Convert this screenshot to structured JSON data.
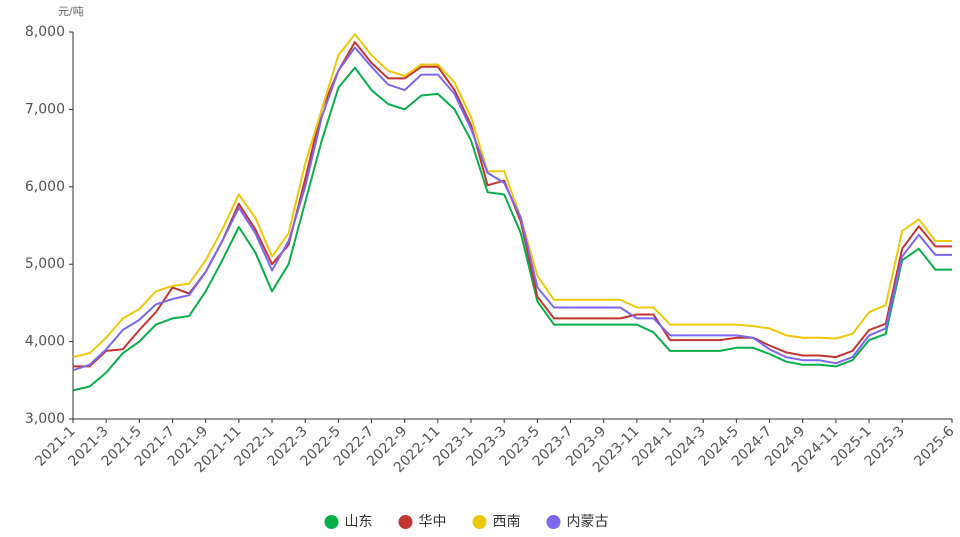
{
  "chart_data": {
    "type": "line",
    "y_unit": "元/吨",
    "categories": [
      "2021-1",
      null,
      "2021-3",
      null,
      "2021-5",
      null,
      "2021-7",
      null,
      "2021-9",
      null,
      "2021-11",
      null,
      "2022-1",
      null,
      "2022-3",
      null,
      "2022-5",
      null,
      "2022-7",
      null,
      "2022-9",
      null,
      "2022-11",
      null,
      "2023-1",
      null,
      "2023-3",
      null,
      "2023-5",
      null,
      "2023-7",
      null,
      "2023-9",
      null,
      "2023-11",
      null,
      "2024-1",
      null,
      "2024-3",
      null,
      "2024-5",
      null,
      "2024-7",
      null,
      "2024-9",
      null,
      "2024-11",
      null,
      "2025-1",
      null,
      "2025-3",
      null,
      null,
      "2025-6"
    ],
    "series": [
      {
        "name": "山东",
        "color": "#0aae4c",
        "values": [
          3370,
          3420,
          3600,
          3850,
          4000,
          4220,
          4300,
          4330,
          4650,
          5050,
          5480,
          5150,
          4650,
          5000,
          5800,
          6600,
          7280,
          7540,
          7250,
          7070,
          7000,
          7180,
          7200,
          7000,
          6600,
          5930,
          5900,
          5400,
          4520,
          4220,
          4220,
          4220,
          4220,
          4220,
          4220,
          4120,
          3880,
          3880,
          3880,
          3880,
          3920,
          3920,
          3840,
          3740,
          3700,
          3700,
          3680,
          3760,
          4020,
          4100,
          5050,
          5200,
          4930,
          4930
        ]
      },
      {
        "name": "华中",
        "color": "#c23531",
        "values": [
          3680,
          3680,
          3880,
          3900,
          4150,
          4380,
          4700,
          4620,
          4900,
          5300,
          5780,
          5450,
          5000,
          5250,
          6100,
          7000,
          7500,
          7870,
          7600,
          7400,
          7400,
          7550,
          7550,
          7250,
          6800,
          6020,
          6080,
          5550,
          4580,
          4300,
          4300,
          4300,
          4300,
          4300,
          4350,
          4350,
          4020,
          4020,
          4020,
          4020,
          4050,
          4050,
          3950,
          3860,
          3820,
          3820,
          3800,
          3880,
          4150,
          4230,
          5200,
          5490,
          5230,
          5230
        ]
      },
      {
        "name": "西南",
        "color": "#eec80b",
        "values": [
          3800,
          3850,
          4050,
          4300,
          4420,
          4650,
          4720,
          4750,
          5050,
          5450,
          5900,
          5600,
          5100,
          5400,
          6300,
          7000,
          7700,
          7970,
          7700,
          7500,
          7430,
          7580,
          7580,
          7350,
          6900,
          6200,
          6200,
          5600,
          4850,
          4540,
          4540,
          4540,
          4540,
          4540,
          4440,
          4440,
          4220,
          4220,
          4220,
          4220,
          4220,
          4200,
          4170,
          4080,
          4050,
          4050,
          4040,
          4100,
          4380,
          4470,
          5430,
          5580,
          5300,
          5300
        ]
      },
      {
        "name": "内蒙古",
        "color": "#7b68ee",
        "values": [
          3630,
          3700,
          3900,
          4150,
          4280,
          4480,
          4550,
          4600,
          4900,
          5300,
          5730,
          5400,
          4920,
          5300,
          6000,
          6900,
          7500,
          7800,
          7550,
          7320,
          7250,
          7450,
          7450,
          7200,
          6750,
          6180,
          6050,
          5600,
          4700,
          4440,
          4440,
          4440,
          4440,
          4440,
          4300,
          4300,
          4080,
          4080,
          4080,
          4080,
          4080,
          4050,
          3900,
          3800,
          3760,
          3760,
          3720,
          3800,
          4080,
          4170,
          5100,
          5380,
          5120,
          5120
        ]
      }
    ],
    "ylim": [
      3000,
      8000
    ],
    "yticks": [
      {
        "value": 3000,
        "label": "3,000"
      },
      {
        "value": 4000,
        "label": "4,000"
      },
      {
        "value": 5000,
        "label": "5,000"
      },
      {
        "value": 6000,
        "label": "6,000"
      },
      {
        "value": 7000,
        "label": "7,000"
      },
      {
        "value": 8000,
        "label": "8,000"
      }
    ],
    "grid": false,
    "legend": "bottom"
  }
}
